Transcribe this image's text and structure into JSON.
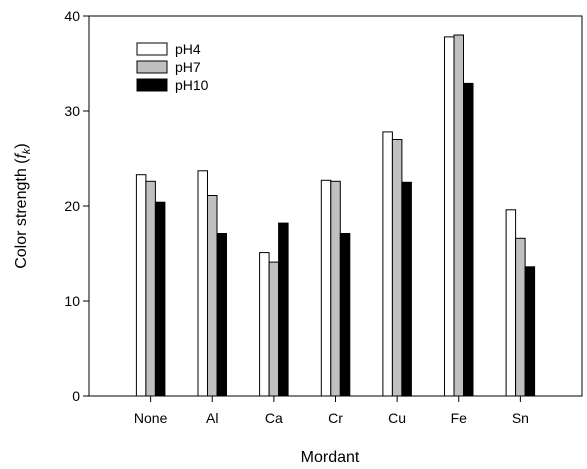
{
  "chart_data": {
    "type": "bar",
    "title": "",
    "xlabel": "Mordant",
    "ylabel": "Color strength (",
    "ylabel_italic": "f",
    "ylabel_sub": "k",
    "ylabel_end": ")",
    "categories": [
      "None",
      "Al",
      "Ca",
      "Cr",
      "Cu",
      "Fe",
      "Sn"
    ],
    "ylim": [
      0,
      40
    ],
    "yticks": [
      "0",
      "10",
      "20",
      "30",
      "40"
    ],
    "grid": false,
    "legend_position": "top-left",
    "series": [
      {
        "name": "pH4",
        "color": "#ffffff",
        "values": [
          23.3,
          23.7,
          15.1,
          22.7,
          27.8,
          37.8,
          19.6
        ]
      },
      {
        "name": "pH7",
        "color": "#c0c0c0",
        "values": [
          22.6,
          21.1,
          14.1,
          22.6,
          27.0,
          38.0,
          16.6
        ]
      },
      {
        "name": "pH10",
        "color": "#000000",
        "values": [
          20.4,
          17.1,
          18.2,
          17.1,
          22.5,
          32.9,
          13.6
        ]
      }
    ]
  }
}
